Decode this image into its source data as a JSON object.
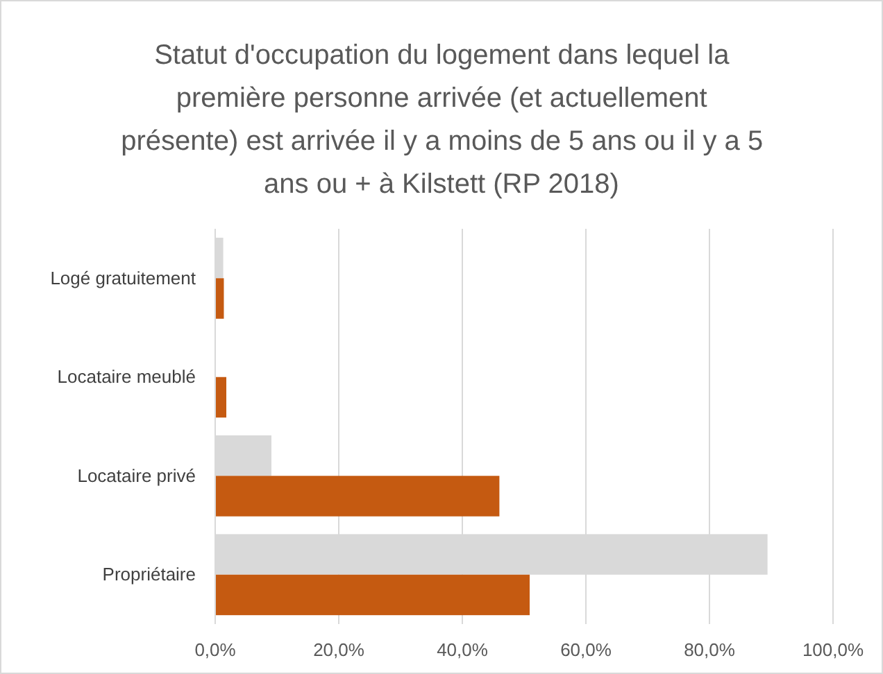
{
  "chart_data": {
    "type": "bar",
    "orientation": "horizontal",
    "title": "Statut d'occupation du logement dans lequel la première personne arrivée (et actuellement présente) est arrivée il y a moins de 5 ans ou il y a 5 ans ou + à Kilstett (RP 2018)",
    "categories": [
      "Logé gratuitement",
      "Locataire meublé",
      "Locataire privé",
      "Propriétaire"
    ],
    "series": [
      {
        "color": "#d9d9d9",
        "values": [
          1.3,
          0,
          9.1,
          89.4
        ]
      },
      {
        "color": "#c55a11",
        "values": [
          1.4,
          1.8,
          46.0,
          50.9
        ]
      }
    ],
    "xlim": [
      0,
      100
    ],
    "xticks": [
      {
        "value": 0,
        "label": "0,0%"
      },
      {
        "value": 20,
        "label": "20,0%"
      },
      {
        "value": 40,
        "label": "40,0%"
      },
      {
        "value": 60,
        "label": "60,0%"
      },
      {
        "value": 80,
        "label": "80,0%"
      },
      {
        "value": 100,
        "label": "100,0%"
      }
    ],
    "grid": "x",
    "legend": false
  }
}
